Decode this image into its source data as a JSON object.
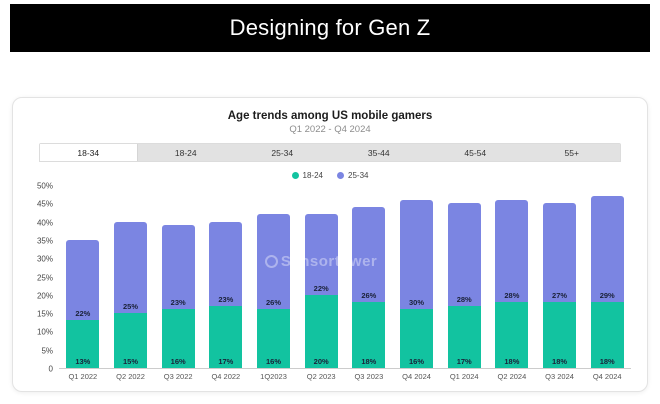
{
  "header": {
    "title": "Designing for Gen Z"
  },
  "card": {
    "title": "Age trends among US mobile gamers",
    "subtitle": "Q1 2022 - Q4 2024",
    "tabs": [
      {
        "label": "18-34",
        "active": true
      },
      {
        "label": "18-24",
        "active": false
      },
      {
        "label": "25-34",
        "active": false
      },
      {
        "label": "35-44",
        "active": false
      },
      {
        "label": "45-54",
        "active": false
      },
      {
        "label": "55+",
        "active": false
      }
    ],
    "watermark": "Sensortower"
  },
  "chart_data": {
    "type": "bar",
    "stacked": true,
    "title": "Age trends among US mobile gamers",
    "subtitle": "Q1 2022 - Q4 2024",
    "categories": [
      "Q1 2022",
      "Q2 2022",
      "Q3 2022",
      "Q4 2022",
      "1Q2023",
      "Q2 2023",
      "Q3 2023",
      "Q4 2024",
      "Q1 2024",
      "Q2 2024",
      "Q3 2024",
      "Q4 2024"
    ],
    "series": [
      {
        "name": "18-24",
        "color": "#12C3A0",
        "values": [
          13,
          15,
          16,
          17,
          16,
          20,
          18,
          16,
          17,
          18,
          18,
          18
        ]
      },
      {
        "name": "25-34",
        "color": "#7B85E2",
        "values": [
          22,
          25,
          23,
          23,
          26,
          22,
          26,
          30,
          28,
          28,
          27,
          29
        ]
      }
    ],
    "value_suffix": "%",
    "xlabel": "",
    "ylabel": "",
    "ylim": [
      0,
      50
    ],
    "yticks": [
      "50%",
      "45%",
      "40%",
      "35%",
      "30%",
      "25%",
      "20%",
      "15%",
      "10%",
      "5%",
      "0"
    ],
    "grid": false,
    "legend_position": "top"
  }
}
